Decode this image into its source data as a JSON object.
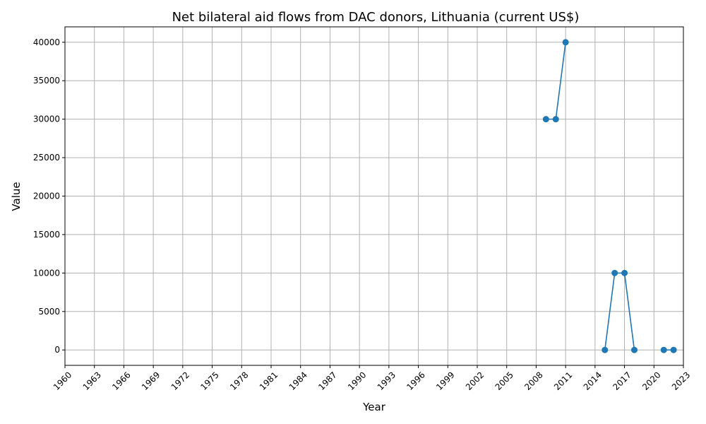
{
  "chart_data": {
    "type": "line",
    "title": "Net bilateral aid flows from DAC donors, Lithuania (current US$)",
    "xlabel": "Year",
    "ylabel": "Value",
    "xlim": [
      1960,
      2023
    ],
    "ylim": [
      -2000,
      42000
    ],
    "x_ticks": [
      1960,
      1963,
      1966,
      1969,
      1972,
      1975,
      1978,
      1981,
      1984,
      1987,
      1990,
      1993,
      1996,
      1999,
      2002,
      2005,
      2008,
      2011,
      2014,
      2017,
      2020,
      2023
    ],
    "y_ticks": [
      0,
      5000,
      10000,
      15000,
      20000,
      25000,
      30000,
      35000,
      40000
    ],
    "grid": true,
    "color": "#1f77b4",
    "marker": "circle",
    "series": [
      {
        "segments": [
          [
            [
              2009,
              30000
            ],
            [
              2010,
              30000
            ],
            [
              2011,
              40000
            ]
          ],
          [
            [
              2015,
              0
            ],
            [
              2016,
              10000
            ],
            [
              2017,
              10000
            ],
            [
              2018,
              0
            ]
          ],
          [
            [
              2021,
              0
            ],
            [
              2022,
              0
            ]
          ]
        ]
      }
    ]
  }
}
